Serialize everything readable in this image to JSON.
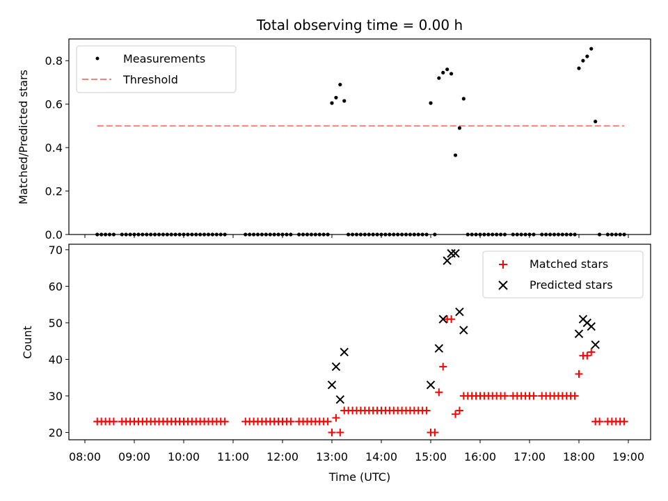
{
  "chart_data": [
    {
      "type": "scatter",
      "title": "Total observing time = 0.00 h",
      "xlabel": "",
      "ylabel": "Matched/Predicted stars",
      "xlim": [
        "08:00",
        "19:00"
      ],
      "ylim": [
        0.0,
        0.9
      ],
      "yticks": [
        "0.0",
        "0.2",
        "0.4",
        "0.6",
        "0.8"
      ],
      "legend_position": "top-left",
      "threshold": {
        "name": "Threshold",
        "x_start": "08:15",
        "x_end": "18:55",
        "value": 0.5,
        "color": "#ff7f7f"
      },
      "series": [
        {
          "name": "Measurements",
          "color": "#000000",
          "points": [
            [
              "08:15",
              0
            ],
            [
              "08:20",
              0
            ],
            [
              "08:25",
              0
            ],
            [
              "08:30",
              0
            ],
            [
              "08:35",
              0
            ],
            [
              "08:45",
              0
            ],
            [
              "08:50",
              0
            ],
            [
              "08:55",
              0
            ],
            [
              "09:00",
              0
            ],
            [
              "09:05",
              0
            ],
            [
              "09:10",
              0
            ],
            [
              "09:15",
              0
            ],
            [
              "09:20",
              0
            ],
            [
              "09:25",
              0
            ],
            [
              "09:30",
              0
            ],
            [
              "09:35",
              0
            ],
            [
              "09:40",
              0
            ],
            [
              "09:45",
              0
            ],
            [
              "09:50",
              0
            ],
            [
              "09:55",
              0
            ],
            [
              "10:00",
              0
            ],
            [
              "10:05",
              0
            ],
            [
              "10:10",
              0
            ],
            [
              "10:15",
              0
            ],
            [
              "10:20",
              0
            ],
            [
              "10:25",
              0
            ],
            [
              "10:30",
              0
            ],
            [
              "10:35",
              0
            ],
            [
              "10:40",
              0
            ],
            [
              "10:45",
              0
            ],
            [
              "10:50",
              0
            ],
            [
              "11:15",
              0
            ],
            [
              "11:20",
              0
            ],
            [
              "11:25",
              0
            ],
            [
              "11:30",
              0
            ],
            [
              "11:35",
              0
            ],
            [
              "11:40",
              0
            ],
            [
              "11:45",
              0
            ],
            [
              "11:50",
              0
            ],
            [
              "11:55",
              0
            ],
            [
              "12:00",
              0
            ],
            [
              "12:05",
              0
            ],
            [
              "12:10",
              0
            ],
            [
              "12:20",
              0
            ],
            [
              "12:25",
              0
            ],
            [
              "12:30",
              0
            ],
            [
              "12:35",
              0
            ],
            [
              "12:40",
              0
            ],
            [
              "12:45",
              0
            ],
            [
              "12:50",
              0
            ],
            [
              "12:55",
              0
            ],
            [
              "13:00",
              0.605
            ],
            [
              "13:05",
              0.63
            ],
            [
              "13:10",
              0.69
            ],
            [
              "13:15",
              0.615
            ],
            [
              "13:20",
              0
            ],
            [
              "13:25",
              0
            ],
            [
              "13:30",
              0
            ],
            [
              "13:35",
              0
            ],
            [
              "13:40",
              0
            ],
            [
              "13:45",
              0
            ],
            [
              "13:50",
              0
            ],
            [
              "13:55",
              0
            ],
            [
              "14:00",
              0
            ],
            [
              "14:05",
              0
            ],
            [
              "14:10",
              0
            ],
            [
              "14:15",
              0
            ],
            [
              "14:20",
              0
            ],
            [
              "14:25",
              0
            ],
            [
              "14:30",
              0
            ],
            [
              "14:35",
              0
            ],
            [
              "14:40",
              0
            ],
            [
              "14:45",
              0
            ],
            [
              "14:50",
              0
            ],
            [
              "14:55",
              0
            ],
            [
              "15:00",
              0.605
            ],
            [
              "15:05",
              0
            ],
            [
              "15:10",
              0.72
            ],
            [
              "15:15",
              0.745
            ],
            [
              "15:20",
              0.76
            ],
            [
              "15:25",
              0.74
            ],
            [
              "15:30",
              0.365
            ],
            [
              "15:35",
              0.49
            ],
            [
              "15:40",
              0.625
            ],
            [
              "15:45",
              0
            ],
            [
              "15:50",
              0
            ],
            [
              "15:55",
              0
            ],
            [
              "16:00",
              0
            ],
            [
              "16:05",
              0
            ],
            [
              "16:10",
              0
            ],
            [
              "16:15",
              0
            ],
            [
              "16:20",
              0
            ],
            [
              "16:25",
              0
            ],
            [
              "16:30",
              0
            ],
            [
              "16:40",
              0
            ],
            [
              "16:45",
              0
            ],
            [
              "16:50",
              0
            ],
            [
              "16:55",
              0
            ],
            [
              "17:00",
              0
            ],
            [
              "17:05",
              0
            ],
            [
              "17:15",
              0
            ],
            [
              "17:20",
              0
            ],
            [
              "17:25",
              0
            ],
            [
              "17:30",
              0
            ],
            [
              "17:35",
              0
            ],
            [
              "17:40",
              0
            ],
            [
              "17:45",
              0
            ],
            [
              "17:50",
              0
            ],
            [
              "17:55",
              0
            ],
            [
              "18:00",
              0.765
            ],
            [
              "18:05",
              0.8
            ],
            [
              "18:10",
              0.82
            ],
            [
              "18:15",
              0.855
            ],
            [
              "18:20",
              0.52
            ],
            [
              "18:25",
              0
            ],
            [
              "18:35",
              0
            ],
            [
              "18:40",
              0
            ],
            [
              "18:45",
              0
            ],
            [
              "18:50",
              0
            ],
            [
              "18:55",
              0
            ]
          ]
        }
      ]
    },
    {
      "type": "scatter",
      "title": "",
      "xlabel": "Time (UTC)",
      "ylabel": "Count",
      "xlim": [
        "08:00",
        "19:00"
      ],
      "ylim": [
        18,
        71.5
      ],
      "xticks": [
        "08:00",
        "09:00",
        "10:00",
        "11:00",
        "12:00",
        "13:00",
        "14:00",
        "15:00",
        "16:00",
        "17:00",
        "18:00",
        "19:00"
      ],
      "yticks": [
        "20",
        "30",
        "40",
        "50",
        "60",
        "70"
      ],
      "legend_position": "top-right",
      "series": [
        {
          "name": "Matched stars",
          "color": "#ff0000",
          "marker": "plus",
          "points": [
            [
              "08:15",
              23
            ],
            [
              "08:20",
              23
            ],
            [
              "08:25",
              23
            ],
            [
              "08:30",
              23
            ],
            [
              "08:35",
              23
            ],
            [
              "08:45",
              23
            ],
            [
              "08:50",
              23
            ],
            [
              "08:55",
              23
            ],
            [
              "09:00",
              23
            ],
            [
              "09:05",
              23
            ],
            [
              "09:10",
              23
            ],
            [
              "09:15",
              23
            ],
            [
              "09:20",
              23
            ],
            [
              "09:25",
              23
            ],
            [
              "09:30",
              23
            ],
            [
              "09:35",
              23
            ],
            [
              "09:40",
              23
            ],
            [
              "09:45",
              23
            ],
            [
              "09:50",
              23
            ],
            [
              "09:55",
              23
            ],
            [
              "10:00",
              23
            ],
            [
              "10:05",
              23
            ],
            [
              "10:10",
              23
            ],
            [
              "10:15",
              23
            ],
            [
              "10:20",
              23
            ],
            [
              "10:25",
              23
            ],
            [
              "10:30",
              23
            ],
            [
              "10:35",
              23
            ],
            [
              "10:40",
              23
            ],
            [
              "10:45",
              23
            ],
            [
              "10:50",
              23
            ],
            [
              "11:15",
              23
            ],
            [
              "11:20",
              23
            ],
            [
              "11:25",
              23
            ],
            [
              "11:30",
              23
            ],
            [
              "11:35",
              23
            ],
            [
              "11:40",
              23
            ],
            [
              "11:45",
              23
            ],
            [
              "11:50",
              23
            ],
            [
              "11:55",
              23
            ],
            [
              "12:00",
              23
            ],
            [
              "12:05",
              23
            ],
            [
              "12:10",
              23
            ],
            [
              "12:20",
              23
            ],
            [
              "12:25",
              23
            ],
            [
              "12:30",
              23
            ],
            [
              "12:35",
              23
            ],
            [
              "12:40",
              23
            ],
            [
              "12:45",
              23
            ],
            [
              "12:50",
              23
            ],
            [
              "12:55",
              23
            ],
            [
              "13:00",
              20
            ],
            [
              "13:05",
              24
            ],
            [
              "13:10",
              20
            ],
            [
              "13:15",
              26
            ],
            [
              "13:20",
              26
            ],
            [
              "13:25",
              26
            ],
            [
              "13:30",
              26
            ],
            [
              "13:35",
              26
            ],
            [
              "13:40",
              26
            ],
            [
              "13:45",
              26
            ],
            [
              "13:50",
              26
            ],
            [
              "13:55",
              26
            ],
            [
              "14:00",
              26
            ],
            [
              "14:05",
              26
            ],
            [
              "14:10",
              26
            ],
            [
              "14:15",
              26
            ],
            [
              "14:20",
              26
            ],
            [
              "14:25",
              26
            ],
            [
              "14:30",
              26
            ],
            [
              "14:35",
              26
            ],
            [
              "14:40",
              26
            ],
            [
              "14:45",
              26
            ],
            [
              "14:50",
              26
            ],
            [
              "14:55",
              26
            ],
            [
              "15:00",
              20
            ],
            [
              "15:05",
              20
            ],
            [
              "15:10",
              31
            ],
            [
              "15:15",
              38
            ],
            [
              "15:20",
              51
            ],
            [
              "15:25",
              51
            ],
            [
              "15:30",
              25
            ],
            [
              "15:35",
              26
            ],
            [
              "15:40",
              30
            ],
            [
              "15:45",
              30
            ],
            [
              "15:50",
              30
            ],
            [
              "15:55",
              30
            ],
            [
              "16:00",
              30
            ],
            [
              "16:05",
              30
            ],
            [
              "16:10",
              30
            ],
            [
              "16:15",
              30
            ],
            [
              "16:20",
              30
            ],
            [
              "16:25",
              30
            ],
            [
              "16:30",
              30
            ],
            [
              "16:40",
              30
            ],
            [
              "16:45",
              30
            ],
            [
              "16:50",
              30
            ],
            [
              "16:55",
              30
            ],
            [
              "17:00",
              30
            ],
            [
              "17:05",
              30
            ],
            [
              "17:15",
              30
            ],
            [
              "17:20",
              30
            ],
            [
              "17:25",
              30
            ],
            [
              "17:30",
              30
            ],
            [
              "17:35",
              30
            ],
            [
              "17:40",
              30
            ],
            [
              "17:45",
              30
            ],
            [
              "17:50",
              30
            ],
            [
              "17:55",
              30
            ],
            [
              "18:00",
              36
            ],
            [
              "18:05",
              41
            ],
            [
              "18:10",
              41
            ],
            [
              "18:15",
              42
            ],
            [
              "18:20",
              23
            ],
            [
              "18:25",
              23
            ],
            [
              "18:35",
              23
            ],
            [
              "18:40",
              23
            ],
            [
              "18:45",
              23
            ],
            [
              "18:50",
              23
            ],
            [
              "18:55",
              23
            ]
          ]
        },
        {
          "name": "Predicted stars",
          "color": "#000000",
          "marker": "x",
          "points": [
            [
              "13:00",
              33
            ],
            [
              "13:05",
              38
            ],
            [
              "13:10",
              29
            ],
            [
              "13:15",
              42
            ],
            [
              "15:00",
              33
            ],
            [
              "15:10",
              43
            ],
            [
              "15:15",
              51
            ],
            [
              "15:20",
              67
            ],
            [
              "15:25",
              69
            ],
            [
              "15:30",
              69
            ],
            [
              "15:35",
              53
            ],
            [
              "15:40",
              48
            ],
            [
              "18:00",
              47
            ],
            [
              "18:05",
              51
            ],
            [
              "18:10",
              50
            ],
            [
              "18:15",
              49
            ],
            [
              "18:20",
              44
            ]
          ]
        }
      ]
    }
  ]
}
